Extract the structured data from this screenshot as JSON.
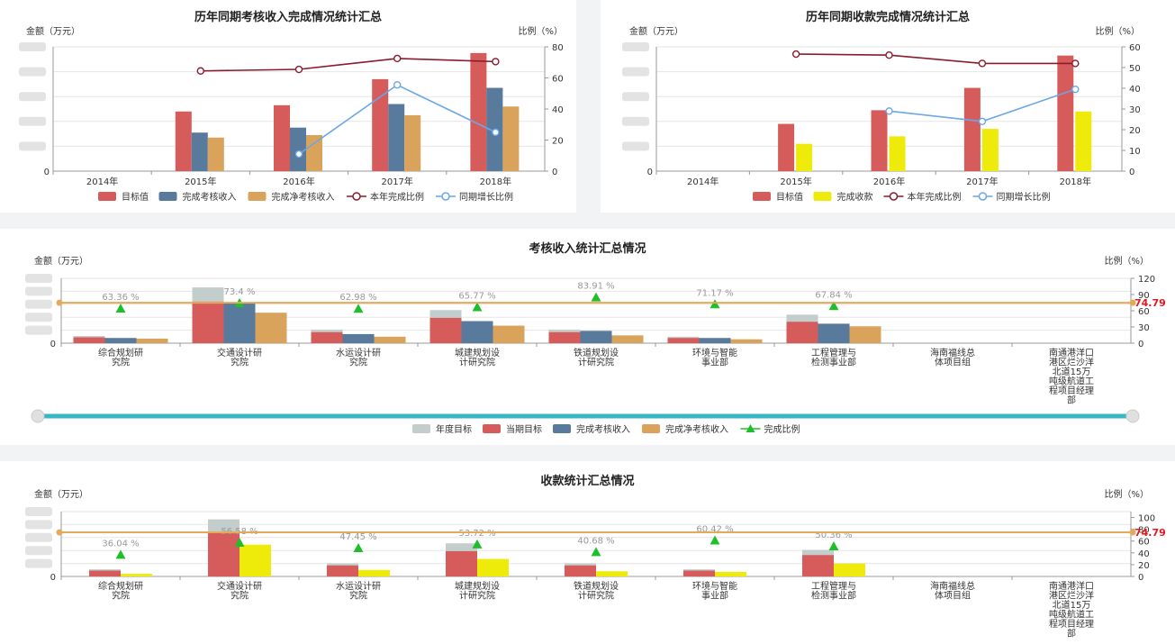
{
  "colors": {
    "target": "#d65c5c",
    "done_income": "#587a9c",
    "net_income": "#d9a35c",
    "collected": "#eeea0a",
    "rate_line": "#8b1a2e",
    "growth_line": "#6aa6e8",
    "annual_target": "#c2cdcc",
    "triangle": "#1fbf2b",
    "avg_line": "#e6a95a",
    "slider": "#36b8c4"
  },
  "chart1": {
    "title": "历年同期考核收入完成情况统计汇总",
    "left_axis_label": "金额（万元）",
    "right_axis_label": "比例（%）",
    "right_ticks": [
      "80",
      "60",
      "40",
      "20",
      "0"
    ],
    "left_ticks": [
      "0"
    ],
    "legend": [
      "目标值",
      "完成考核收入",
      "完成净考核收入",
      "本年完成比例",
      "同期增长比例"
    ]
  },
  "chart2": {
    "title": "历年同期收款完成情况统计汇总",
    "left_axis_label": "金额（万元）",
    "right_axis_label": "比例（%）",
    "right_ticks": [
      "60",
      "50",
      "40",
      "30",
      "20",
      "10",
      "0"
    ],
    "left_ticks": [
      "0"
    ],
    "legend": [
      "目标值",
      "完成收款",
      "本年完成比例",
      "同期增长比例"
    ]
  },
  "chart3": {
    "title": "考核收入统计汇总情况",
    "left_axis_label": "金额（万元）",
    "right_axis_label": "比例（%）",
    "right_ticks": [
      "120",
      "90",
      "60",
      "30",
      "0"
    ],
    "left_ticks": [
      "0"
    ],
    "avg_label": "74.79",
    "legend": [
      "年度目标",
      "当期目标",
      "完成考核收入",
      "完成净考核收入",
      "完成比例"
    ]
  },
  "chart4": {
    "title": "收款统计汇总情况",
    "left_axis_label": "金额（万元）",
    "right_axis_label": "比例（%）",
    "right_ticks": [
      "100",
      "80",
      "60",
      "40",
      "20",
      "0"
    ],
    "left_ticks": [
      "0"
    ],
    "avg_label": "74.79"
  },
  "chart_data": [
    {
      "type": "bar",
      "title": "历年同期考核收入完成情况统计汇总",
      "categories": [
        "2014年",
        "2015年",
        "2016年",
        "2017年",
        "2018年"
      ],
      "ylim": [
        0,
        50
      ],
      "y2lim": [
        0,
        80
      ],
      "series": [
        {
          "name": "目标值",
          "values": [
            0,
            24,
            26.5,
            37,
            47.5
          ]
        },
        {
          "name": "完成考核收入",
          "values": [
            0,
            15.5,
            17.5,
            27,
            33.5
          ]
        },
        {
          "name": "完成净考核收入",
          "values": [
            0,
            13.5,
            14.5,
            22.5,
            26
          ]
        },
        {
          "name": "本年完成比例",
          "axis": "right",
          "values": [
            null,
            64.5,
            65.5,
            72.5,
            70.5
          ]
        },
        {
          "name": "同期增长比例",
          "axis": "right",
          "values": [
            null,
            null,
            11,
            55.5,
            25
          ]
        }
      ]
    },
    {
      "type": "bar",
      "title": "历年同期收款完成情况统计汇总",
      "categories": [
        "2014年",
        "2015年",
        "2016年",
        "2017年",
        "2018年"
      ],
      "ylim": [
        0,
        50
      ],
      "y2lim": [
        0,
        60
      ],
      "series": [
        {
          "name": "目标值",
          "values": [
            0,
            19,
            24.5,
            33.5,
            46.5
          ]
        },
        {
          "name": "完成收款",
          "values": [
            0,
            11,
            14,
            17,
            24
          ]
        },
        {
          "name": "本年完成比例",
          "axis": "right",
          "values": [
            null,
            56.5,
            56,
            52,
            52
          ]
        },
        {
          "name": "同期增长比例",
          "axis": "right",
          "values": [
            null,
            null,
            29,
            24,
            39.5
          ]
        }
      ]
    },
    {
      "type": "bar",
      "title": "考核收入统计汇总情况",
      "categories": [
        "综合规划研究院",
        "交通设计研究院",
        "水运设计研究院",
        "城建规划设计研究院",
        "铁道规划设计研究院",
        "环境与智能事业部",
        "工程管理与检测事业部",
        "海南福线总体项目组",
        "南通港洋口港区烂沙洋北道15万吨级航道工程项目经理部"
      ],
      "ylim": [
        0,
        50
      ],
      "y2lim": [
        0,
        120
      ],
      "avg": 74.79,
      "series": [
        {
          "name": "年度目标",
          "values": [
            5.5,
            43,
            10.5,
            25.5,
            10.5,
            5,
            22,
            0,
            0
          ]
        },
        {
          "name": "当期目标",
          "values": [
            4.5,
            32,
            8.5,
            19.5,
            8.5,
            4,
            16.5,
            0,
            0
          ]
        },
        {
          "name": "完成考核收入",
          "values": [
            4,
            31,
            7,
            17,
            9.5,
            4,
            15,
            0,
            0
          ]
        },
        {
          "name": "完成净考核收入",
          "values": [
            3.5,
            23.5,
            5,
            13.5,
            6,
            3,
            13,
            0,
            0
          ]
        },
        {
          "name": "完成比例",
          "axis": "right",
          "values": [
            63.36,
            73.4,
            62.98,
            65.77,
            83.91,
            71.17,
            67.84,
            null,
            null
          ],
          "labels": [
            "63.36 %",
            "73.4 %",
            "62.98 %",
            "65.77 %",
            "83.91 %",
            "71.17 %",
            "67.84 %",
            "",
            ""
          ]
        }
      ]
    },
    {
      "type": "bar",
      "title": "收款统计汇总情况",
      "categories": [
        "综合规划研究院",
        "交通设计研究院",
        "水运设计研究院",
        "城建规划设计研究院",
        "铁道规划设计研究院",
        "环境与智能事业部",
        "工程管理与检测事业部",
        "海南福线总体项目组",
        "南通港洋口港区烂沙洋北道15万吨级航道工程项目经理部"
      ],
      "ylim": [
        0,
        50
      ],
      "y2lim": [
        0,
        110
      ],
      "avg": 74.79,
      "series": [
        {
          "name": "年度目标",
          "values": [
            5.5,
            44,
            10,
            25.5,
            10,
            5.5,
            20.5,
            0,
            0
          ]
        },
        {
          "name": "当期目标",
          "values": [
            4.5,
            33.5,
            8.5,
            19.5,
            8.5,
            4.5,
            16.5,
            0,
            0
          ]
        },
        {
          "name": "完成收款",
          "values": [
            2,
            24.5,
            5,
            13.5,
            4,
            3.5,
            10,
            0,
            0
          ]
        },
        {
          "name": "完成比例",
          "axis": "right",
          "values": [
            36.04,
            56.58,
            47.45,
            53.72,
            40.68,
            60.42,
            50.36,
            null,
            null
          ],
          "labels": [
            "36.04 %",
            "56.58 %",
            "47.45 %",
            "53.72 %",
            "40.68 %",
            "60.42 %",
            "50.36 %",
            "",
            ""
          ]
        }
      ]
    }
  ]
}
